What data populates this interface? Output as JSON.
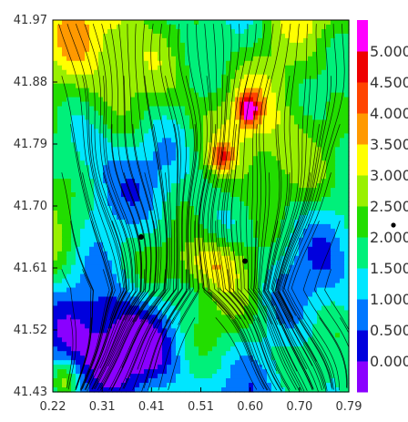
{
  "chart_data": {
    "type": "heatmap",
    "x_ticks": [
      "0.22",
      "0.31",
      "0.41",
      "0.51",
      "0.60",
      "0.70",
      "0.79"
    ],
    "y_ticks": [
      "41.97",
      "41.88",
      "41.79",
      "41.70",
      "41.61",
      "41.52",
      "41.43"
    ],
    "xlim": [
      0.22,
      0.79
    ],
    "ylim": [
      41.43,
      41.97
    ],
    "colorbar": {
      "labels": [
        "5.000",
        "4.500",
        "4.000",
        "3.500",
        "3.000",
        "2.500",
        "2.000",
        "1.500",
        "1.000",
        "0.500",
        "0.000"
      ],
      "range": [
        0,
        5
      ],
      "colors": [
        "#8a00ff",
        "#0000dd",
        "#0077ff",
        "#00e6ff",
        "#00f07a",
        "#22dd00",
        "#99f000",
        "#ffff00",
        "#ff9900",
        "#ff4400",
        "#ee0000",
        "#ff00ff"
      ]
    },
    "markers": [
      {
        "x": 0.39,
        "y": 41.655
      },
      {
        "x": 0.59,
        "y": 41.62
      }
    ],
    "streamlines": true
  }
}
